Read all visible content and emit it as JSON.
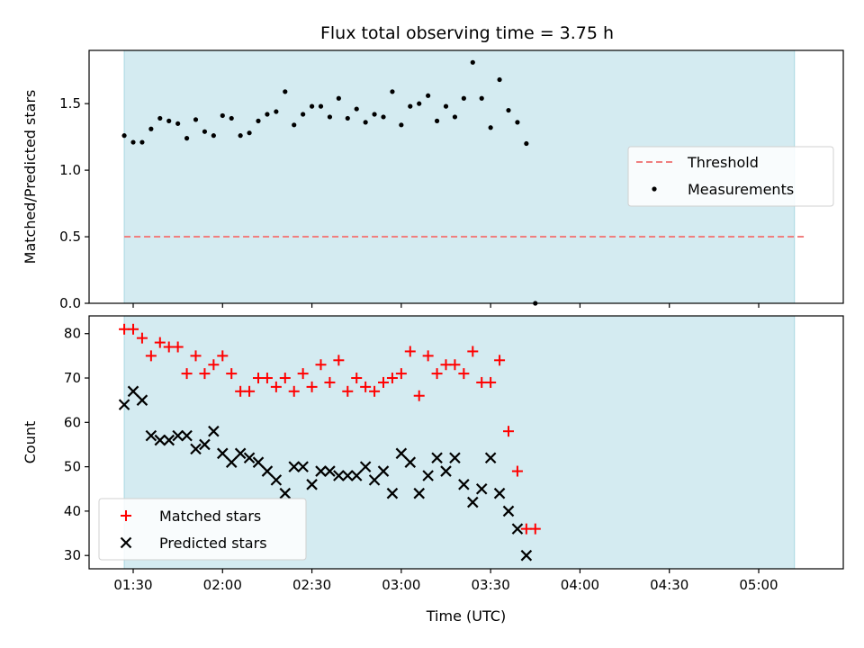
{
  "chart_data": [
    {
      "type": "scatter",
      "title": "Flux total observing time = 3.75 h",
      "xlabel": "",
      "ylabel": "Matched/Predicted stars",
      "ylim": [
        0.0,
        1.9
      ],
      "yticks": [
        "0.0",
        "0.5",
        "1.0",
        "1.5"
      ],
      "grid": false,
      "legend_position": "right",
      "shaded_interval": {
        "start": "01:27",
        "end": "05:12",
        "color": "#d4ebf1",
        "edge_color": "#a8d8e0"
      },
      "threshold": {
        "name": "Threshold",
        "value": 0.5,
        "x_start": "01:27",
        "x_end": "05:16",
        "color": "#f07f7f",
        "style": "dashed"
      },
      "series": [
        {
          "name": "Measurements",
          "color": "#000000",
          "marker": "dot",
          "points": [
            [
              "01:27",
              1.26
            ],
            [
              "01:30",
              1.21
            ],
            [
              "01:33",
              1.21
            ],
            [
              "01:36",
              1.31
            ],
            [
              "01:39",
              1.39
            ],
            [
              "01:42",
              1.37
            ],
            [
              "01:45",
              1.35
            ],
            [
              "01:48",
              1.24
            ],
            [
              "01:51",
              1.38
            ],
            [
              "01:54",
              1.29
            ],
            [
              "01:57",
              1.26
            ],
            [
              "02:00",
              1.41
            ],
            [
              "02:03",
              1.39
            ],
            [
              "02:06",
              1.26
            ],
            [
              "02:09",
              1.28
            ],
            [
              "02:12",
              1.37
            ],
            [
              "02:15",
              1.42
            ],
            [
              "02:18",
              1.44
            ],
            [
              "02:21",
              1.59
            ],
            [
              "02:24",
              1.34
            ],
            [
              "02:27",
              1.42
            ],
            [
              "02:30",
              1.48
            ],
            [
              "02:33",
              1.48
            ],
            [
              "02:36",
              1.4
            ],
            [
              "02:39",
              1.54
            ],
            [
              "02:42",
              1.39
            ],
            [
              "02:45",
              1.46
            ],
            [
              "02:48",
              1.36
            ],
            [
              "02:51",
              1.42
            ],
            [
              "02:54",
              1.4
            ],
            [
              "02:57",
              1.59
            ],
            [
              "03:00",
              1.34
            ],
            [
              "03:03",
              1.48
            ],
            [
              "03:06",
              1.5
            ],
            [
              "03:09",
              1.56
            ],
            [
              "03:12",
              1.37
            ],
            [
              "03:15",
              1.48
            ],
            [
              "03:18",
              1.4
            ],
            [
              "03:21",
              1.54
            ],
            [
              "03:24",
              1.81
            ],
            [
              "03:27",
              1.54
            ],
            [
              "03:30",
              1.32
            ],
            [
              "03:33",
              1.68
            ],
            [
              "03:36",
              1.45
            ],
            [
              "03:39",
              1.36
            ],
            [
              "03:42",
              1.2
            ],
            [
              "03:45",
              0.0
            ]
          ]
        }
      ]
    },
    {
      "type": "scatter",
      "title": "",
      "xlabel": "Time (UTC)",
      "ylabel": "Count",
      "ylim": [
        27,
        84
      ],
      "yticks": [
        "30",
        "40",
        "50",
        "60",
        "70",
        "80"
      ],
      "xticks": [
        "01:30",
        "02:00",
        "02:30",
        "03:00",
        "03:30",
        "04:00",
        "04:30",
        "05:00"
      ],
      "grid": false,
      "legend_position": "lower-left",
      "series": [
        {
          "name": "Matched stars",
          "color": "#ff0000",
          "marker": "plus",
          "points": [
            [
              "01:27",
              81
            ],
            [
              "01:30",
              81
            ],
            [
              "01:33",
              79
            ],
            [
              "01:36",
              75
            ],
            [
              "01:39",
              78
            ],
            [
              "01:42",
              77
            ],
            [
              "01:45",
              77
            ],
            [
              "01:48",
              71
            ],
            [
              "01:51",
              75
            ],
            [
              "01:54",
              71
            ],
            [
              "01:57",
              73
            ],
            [
              "02:00",
              75
            ],
            [
              "02:03",
              71
            ],
            [
              "02:06",
              67
            ],
            [
              "02:09",
              67
            ],
            [
              "02:12",
              70
            ],
            [
              "02:15",
              70
            ],
            [
              "02:18",
              68
            ],
            [
              "02:21",
              70
            ],
            [
              "02:24",
              67
            ],
            [
              "02:27",
              71
            ],
            [
              "02:30",
              68
            ],
            [
              "02:33",
              73
            ],
            [
              "02:36",
              69
            ],
            [
              "02:39",
              74
            ],
            [
              "02:42",
              67
            ],
            [
              "02:45",
              70
            ],
            [
              "02:48",
              68
            ],
            [
              "02:51",
              67
            ],
            [
              "02:54",
              69
            ],
            [
              "02:57",
              70
            ],
            [
              "03:00",
              71
            ],
            [
              "03:03",
              76
            ],
            [
              "03:06",
              66
            ],
            [
              "03:09",
              75
            ],
            [
              "03:12",
              71
            ],
            [
              "03:15",
              73
            ],
            [
              "03:18",
              73
            ],
            [
              "03:21",
              71
            ],
            [
              "03:24",
              76
            ],
            [
              "03:27",
              69
            ],
            [
              "03:30",
              69
            ],
            [
              "03:33",
              74
            ],
            [
              "03:36",
              58
            ],
            [
              "03:39",
              49
            ],
            [
              "03:42",
              36
            ],
            [
              "03:45",
              36
            ]
          ]
        },
        {
          "name": "Predicted stars",
          "color": "#000000",
          "marker": "x",
          "points": [
            [
              "01:27",
              64
            ],
            [
              "01:30",
              67
            ],
            [
              "01:33",
              65
            ],
            [
              "01:36",
              57
            ],
            [
              "01:39",
              56
            ],
            [
              "01:42",
              56
            ],
            [
              "01:45",
              57
            ],
            [
              "01:48",
              57
            ],
            [
              "01:51",
              54
            ],
            [
              "01:54",
              55
            ],
            [
              "01:57",
              58
            ],
            [
              "02:00",
              53
            ],
            [
              "02:03",
              51
            ],
            [
              "02:06",
              53
            ],
            [
              "02:09",
              52
            ],
            [
              "02:12",
              51
            ],
            [
              "02:15",
              49
            ],
            [
              "02:18",
              47
            ],
            [
              "02:21",
              44
            ],
            [
              "02:24",
              50
            ],
            [
              "02:27",
              50
            ],
            [
              "02:30",
              46
            ],
            [
              "02:33",
              49
            ],
            [
              "02:36",
              49
            ],
            [
              "02:39",
              48
            ],
            [
              "02:42",
              48
            ],
            [
              "02:45",
              48
            ],
            [
              "02:48",
              50
            ],
            [
              "02:51",
              47
            ],
            [
              "02:54",
              49
            ],
            [
              "02:57",
              44
            ],
            [
              "03:00",
              53
            ],
            [
              "03:03",
              51
            ],
            [
              "03:06",
              44
            ],
            [
              "03:09",
              48
            ],
            [
              "03:12",
              52
            ],
            [
              "03:15",
              49
            ],
            [
              "03:18",
              52
            ],
            [
              "03:21",
              46
            ],
            [
              "03:24",
              42
            ],
            [
              "03:27",
              45
            ],
            [
              "03:30",
              52
            ],
            [
              "03:33",
              44
            ],
            [
              "03:36",
              40
            ],
            [
              "03:39",
              36
            ],
            [
              "03:42",
              30
            ]
          ]
        }
      ]
    }
  ]
}
